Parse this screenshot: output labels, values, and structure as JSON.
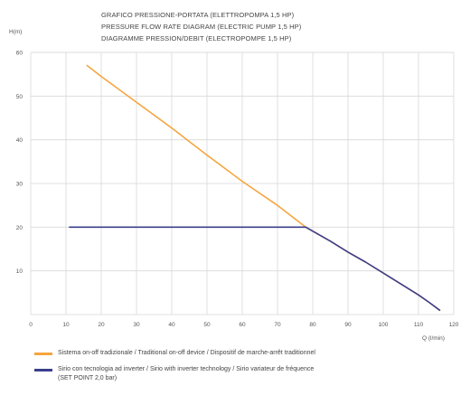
{
  "titles": [
    "GRAFICO PRESSIONE-PORTATA (ELETTROPOMPA 1,5 HP)",
    "PRESSURE FLOW RATE DIAGRAM (ELECTRIC PUMP 1,5 HP)",
    "DIAGRAMME PRESSION/DEBIT (ELECTROPOMPE 1,5 HP)"
  ],
  "colors": {
    "traditional": "#f5a540",
    "inverter": "#3b3f8c",
    "grid": "#d8d8d8",
    "axis_text": "#555555"
  },
  "legend": {
    "traditional": "Sistema on-off tradizionale / Traditional on-off device / Dispositif de marche-arrêt traditionnel",
    "inverter_line1": "Sirio con tecnologia ad inverter / Sirio with inverter technology / Sirio variateur de fréquence",
    "inverter_line2": "(SET POINT 2,0 bar)"
  },
  "chart_data": {
    "type": "line",
    "ylabel": "H(m)",
    "xlabel": "Q (l/min)",
    "xlim": [
      0,
      120
    ],
    "ylim": [
      0,
      60
    ],
    "xticks": [
      0,
      10,
      20,
      30,
      40,
      50,
      60,
      70,
      80,
      90,
      100,
      110,
      120
    ],
    "yticks": [
      10,
      20,
      30,
      40,
      50,
      60
    ],
    "grid": true,
    "legend_position": "bottom",
    "series": [
      {
        "key": "traditional",
        "name": "Sistema on-off tradizionale / Traditional on-off device / Dispositif de marche-arrêt traditionnel",
        "x": [
          16,
          20,
          30,
          40,
          50,
          60,
          70,
          78,
          85,
          90,
          95,
          100,
          105,
          110,
          113,
          116
        ],
        "y": [
          57,
          54.5,
          48.6,
          42.7,
          36.5,
          30.5,
          25,
          20,
          16.8,
          14.3,
          12,
          9.5,
          7,
          4.5,
          2.8,
          1
        ]
      },
      {
        "key": "inverter",
        "name": "Sirio con tecnologia ad inverter / Sirio with inverter technology / Sirio variateur de fréquence (SET POINT 2,0 bar)",
        "x": [
          11,
          78,
          85,
          90,
          95,
          100,
          105,
          110,
          113,
          116
        ],
        "y": [
          20,
          20,
          16.8,
          14.3,
          12,
          9.5,
          7,
          4.5,
          2.8,
          1
        ]
      }
    ]
  }
}
